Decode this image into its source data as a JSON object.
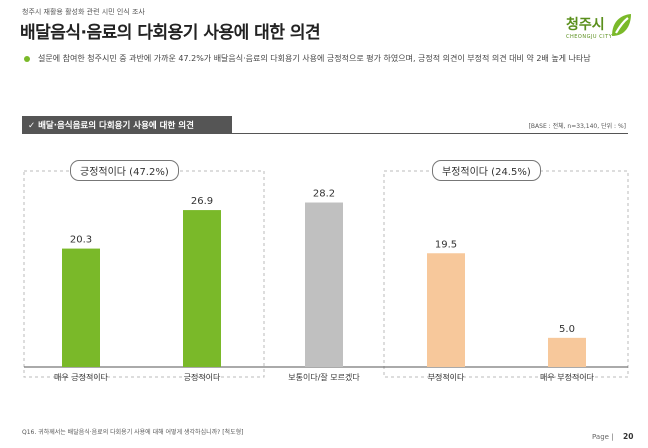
{
  "header": {
    "supertitle": "청주시 재활용 활성화 관련 시민 인식 조사",
    "title": "배달음식·음료의 다회용기 사용에 대한 의견"
  },
  "logo": {
    "text": "청주시",
    "sub": "CHEONGJU CITY"
  },
  "summary": "설문에 참여한 청주시민 중 과반에 가까운 47.2%가 배달음식·음료의 다회용기 사용에 긍정적으로 평가 하였으며, 긍정적 의견이 부정적 의견 대비 약 2배 높게 나타남",
  "section": {
    "title": "✓ 배달·음식음료의 다회용기 사용에 대한 의견",
    "base": "[BASE : 전체, n=33,140, 단위 : %]"
  },
  "groups": {
    "positive": "긍정적이다 (47.2%)",
    "negative": "부정적이다 (24.5%)"
  },
  "chart_data": {
    "type": "bar",
    "categories": [
      "매우 긍정적이다",
      "긍정적이다",
      "보통이다/잘 모르겠다",
      "부정적이다",
      "매우 부정적이다"
    ],
    "values": [
      20.3,
      26.9,
      28.2,
      19.5,
      5.0
    ],
    "value_labels": [
      "20.3",
      "26.9",
      "28.2",
      "19.5",
      "5.0"
    ],
    "colors": [
      "#7ab929",
      "#7ab929",
      "#c0c0c0",
      "#f7c89b",
      "#f7c89b"
    ],
    "unit": "%",
    "ylim": [
      0,
      30
    ]
  },
  "footnote": "Q16. 귀하께서는 배달음식·음료의 다회용기 사용에 대해 어떻게 생각하십니까? [척도형]",
  "footer": {
    "page_label": "Page  |",
    "page_number": "20"
  }
}
